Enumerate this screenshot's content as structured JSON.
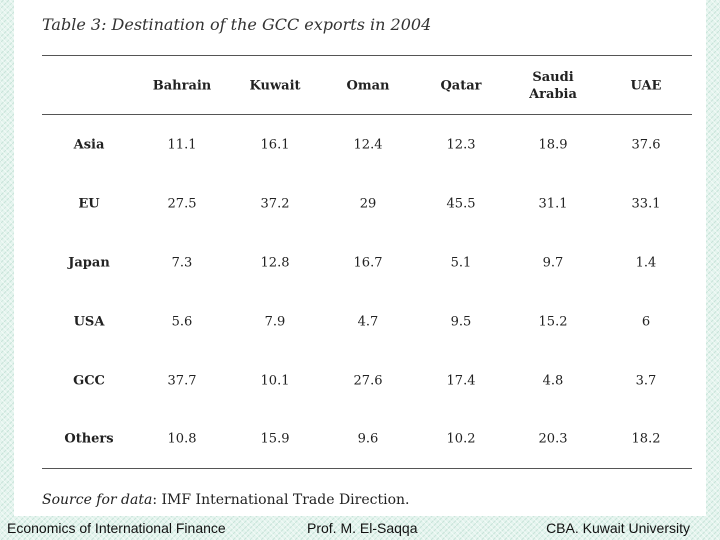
{
  "title": "Table 3: Destination of the GCC exports in 2004",
  "table": {
    "columns": [
      "Bahrain",
      "Kuwait",
      "Oman",
      "Qatar",
      "Saudi Arabia",
      "UAE"
    ],
    "rows": [
      {
        "label": "Asia",
        "values": [
          "11.1",
          "16.1",
          "12.4",
          "12.3",
          "18.9",
          "37.6"
        ]
      },
      {
        "label": "EU",
        "values": [
          "27.5",
          "37.2",
          "29",
          "45.5",
          "31.1",
          "33.1"
        ]
      },
      {
        "label": "Japan",
        "values": [
          "7.3",
          "12.8",
          "16.7",
          "5.1",
          "9.7",
          "1.4"
        ]
      },
      {
        "label": "USA",
        "values": [
          "5.6",
          "7.9",
          "4.7",
          "9.5",
          "15.2",
          "6"
        ]
      },
      {
        "label": "GCC",
        "values": [
          "37.7",
          "10.1",
          "27.6",
          "17.4",
          "4.8",
          "3.7"
        ]
      },
      {
        "label": "Others",
        "values": [
          "10.8",
          "15.9",
          "9.6",
          "10.2",
          "20.3",
          "18.2"
        ]
      }
    ]
  },
  "source": {
    "label": "Source for data",
    "text": ": IMF International Trade Direction."
  },
  "footer": {
    "left": "Economics of International Finance",
    "center": "Prof. M. El-Saqqa",
    "right": "CBA. Kuwait University"
  }
}
